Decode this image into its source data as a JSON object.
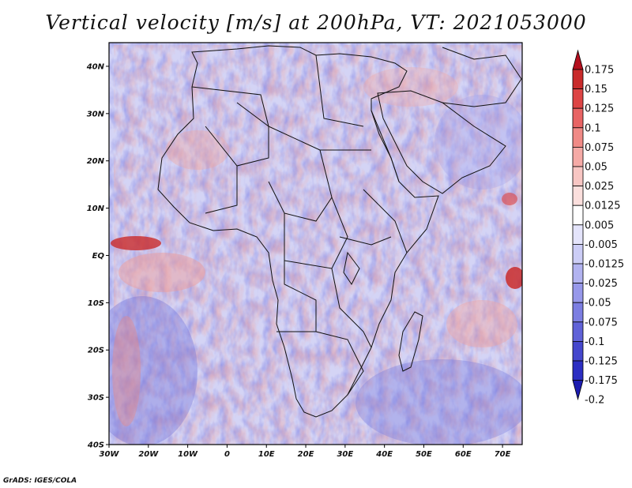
{
  "figure": {
    "title": "Vertical velocity [m/s] at 200hPa, VT: 2021053000",
    "credit": "GrADS: IGES/COLA"
  },
  "map": {
    "region": "Africa and surrounding ocean",
    "variable": "vertical velocity",
    "units": "m/s",
    "level": "200hPa",
    "lon_range": [
      -30,
      75
    ],
    "lat_range": [
      -40,
      45
    ],
    "lat_ticks": [
      {
        "label": "40N",
        "value": 40
      },
      {
        "label": "30N",
        "value": 30
      },
      {
        "label": "20N",
        "value": 20
      },
      {
        "label": "10N",
        "value": 10
      },
      {
        "label": "EQ",
        "value": 0
      },
      {
        "label": "10S",
        "value": -10
      },
      {
        "label": "20S",
        "value": -20
      },
      {
        "label": "30S",
        "value": -30
      },
      {
        "label": "40S",
        "value": -40
      }
    ],
    "lon_ticks": [
      {
        "label": "30W",
        "value": -30
      },
      {
        "label": "20W",
        "value": -20
      },
      {
        "label": "10W",
        "value": -10
      },
      {
        "label": "0",
        "value": 0
      },
      {
        "label": "10E",
        "value": 10
      },
      {
        "label": "20E",
        "value": 20
      },
      {
        "label": "30E",
        "value": 30
      },
      {
        "label": "40E",
        "value": 40
      },
      {
        "label": "50E",
        "value": 50
      },
      {
        "label": "60E",
        "value": 60
      },
      {
        "label": "70E",
        "value": 70
      }
    ]
  },
  "colorbar": {
    "levels": [
      "0.175",
      "0.15",
      "0.125",
      "0.1",
      "0.075",
      "0.05",
      "0.025",
      "0.0125",
      "0.005",
      "-0.005",
      "-0.0125",
      "-0.025",
      "-0.05",
      "-0.075",
      "-0.1",
      "-0.125",
      "-0.175",
      "-0.2"
    ],
    "colors": [
      "#b40f1e",
      "#c92b2b",
      "#dd4545",
      "#e86464",
      "#f08a86",
      "#f5aaa6",
      "#f8c6c3",
      "#fbdfdd",
      "#ffffff",
      "#e4e4fb",
      "#cccdf6",
      "#b2b3f0",
      "#9798ea",
      "#7c7ee2",
      "#6062d8",
      "#4547cd",
      "#2c2ec2",
      "#1c1cb0"
    ]
  }
}
